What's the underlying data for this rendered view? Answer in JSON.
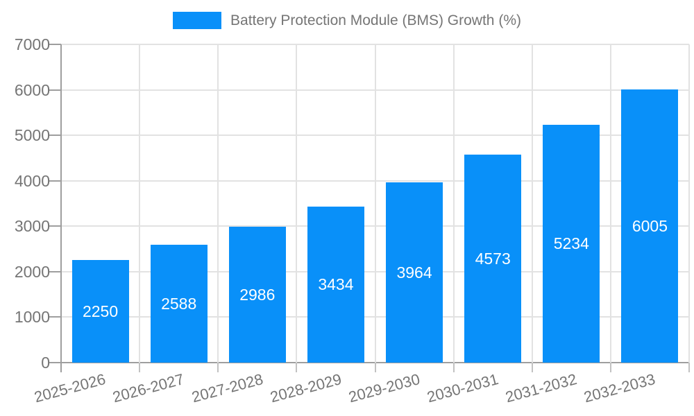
{
  "legend": {
    "label": "Battery Protection Module (BMS) Growth (%)"
  },
  "chart_data": {
    "type": "bar",
    "title": "Battery Protection Module (BMS) Growth (%)",
    "categories": [
      "2025-2026",
      "2026-2027",
      "2027-2028",
      "2028-2029",
      "2029-2030",
      "2030-2031",
      "2031-2032",
      "2032-2033"
    ],
    "values": [
      2250,
      2588,
      2986,
      3434,
      3964,
      4573,
      5234,
      6005
    ],
    "xlabel": "",
    "ylabel": "",
    "ylim": [
      0,
      7000
    ],
    "yticks": [
      0,
      1000,
      2000,
      3000,
      4000,
      5000,
      6000,
      7000
    ],
    "grid": true,
    "legend_position": "top",
    "x_label_rotation_deg": -15,
    "colors": {
      "bar": "#0990f9",
      "bar_value_text": "#ffffff",
      "axis_text": "#757575",
      "gridline": "#e2e2e2",
      "axis_line": "#9e9e9e",
      "minor_tick": "#c2c2c2"
    }
  }
}
